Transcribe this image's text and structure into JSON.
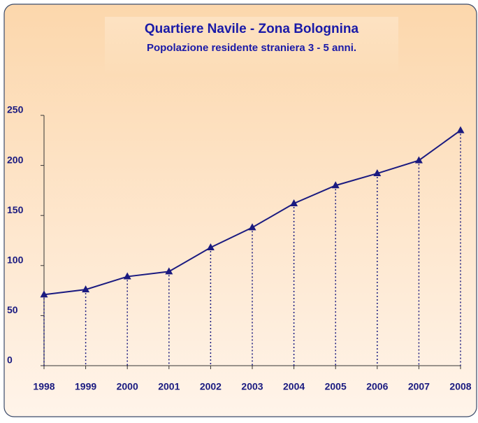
{
  "chart_data": {
    "type": "line",
    "title": "Quartiere Navile - Zona Bolognina",
    "subtitle": "Popolazione residente straniera 3 - 5 anni.",
    "categories": [
      "1998",
      "1999",
      "2000",
      "2001",
      "2002",
      "2003",
      "2004",
      "2005",
      "2006",
      "2007",
      "2008"
    ],
    "series": [
      {
        "name": "Popolazione",
        "color": "#1a1a80",
        "values": [
          71,
          76,
          89,
          94,
          118,
          138,
          162,
          180,
          192,
          205,
          235
        ]
      }
    ],
    "ylim": [
      0,
      250
    ],
    "yticks": [
      0,
      50,
      100,
      150,
      200,
      250
    ],
    "grid": false
  }
}
